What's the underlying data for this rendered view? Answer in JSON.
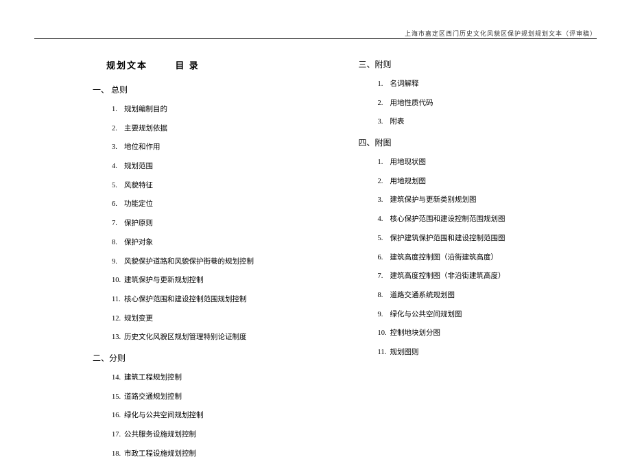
{
  "header": "上海市嘉定区西门历史文化风貌区保护规划规划文本（评审稿）",
  "main_title_1": "规划文本",
  "main_title_2": "目 录",
  "sections": {
    "s1": {
      "title": "一、 总则",
      "items": [
        {
          "num": "1.",
          "text": "规划编制目的"
        },
        {
          "num": "2.",
          "text": "主要规划依据"
        },
        {
          "num": "3.",
          "text": "地位和作用"
        },
        {
          "num": "4.",
          "text": "规划范围"
        },
        {
          "num": "5.",
          "text": "风貌特征"
        },
        {
          "num": "6.",
          "text": "功能定位"
        },
        {
          "num": "7.",
          "text": "保护原则"
        },
        {
          "num": "8.",
          "text": "保护对象"
        },
        {
          "num": "9.",
          "text": "风貌保护道路和风貌保护街巷的规划控制"
        },
        {
          "num": "10.",
          "text": "建筑保护与更新规划控制"
        },
        {
          "num": "11.",
          "text": "核心保护范围和建设控制范围规划控制"
        },
        {
          "num": "12.",
          "text": "规划变更"
        },
        {
          "num": "13.",
          "text": "历史文化风貌区规划管理特别论证制度"
        }
      ]
    },
    "s2": {
      "title": "二、分则",
      "items": [
        {
          "num": "14.",
          "text": "建筑工程规划控制"
        },
        {
          "num": "15.",
          "text": "道路交通规划控制"
        },
        {
          "num": "16.",
          "text": "绿化与公共空间规划控制"
        },
        {
          "num": "17.",
          "text": "公共服务设施规划控制"
        },
        {
          "num": "18.",
          "text": "市政工程设施规划控制"
        }
      ]
    },
    "s3": {
      "title": "三、附则",
      "items": [
        {
          "num": "1.",
          "text": "名词解释"
        },
        {
          "num": "2.",
          "text": "用地性质代码"
        },
        {
          "num": "3.",
          "text": "附表"
        }
      ]
    },
    "s4": {
      "title": "四、附图",
      "items": [
        {
          "num": "1.",
          "text": "用地现状图"
        },
        {
          "num": "2.",
          "text": "用地规划图"
        },
        {
          "num": "3.",
          "text": "建筑保护与更新类别规划图"
        },
        {
          "num": "4.",
          "text": "核心保护范围和建设控制范围规划图"
        },
        {
          "num": "5.",
          "text": "保护建筑保护范围和建设控制范围图"
        },
        {
          "num": "6.",
          "text": "建筑高度控制图（沿街建筑高度）"
        },
        {
          "num": "7.",
          "text": "建筑高度控制图（非沿街建筑高度）"
        },
        {
          "num": "8.",
          "text": "道路交通系统规划图"
        },
        {
          "num": "9.",
          "text": "绿化与公共空间规划图"
        },
        {
          "num": "10.",
          "text": "控制地块划分图"
        },
        {
          "num": "11.",
          "text": "规划图则"
        }
      ]
    }
  }
}
